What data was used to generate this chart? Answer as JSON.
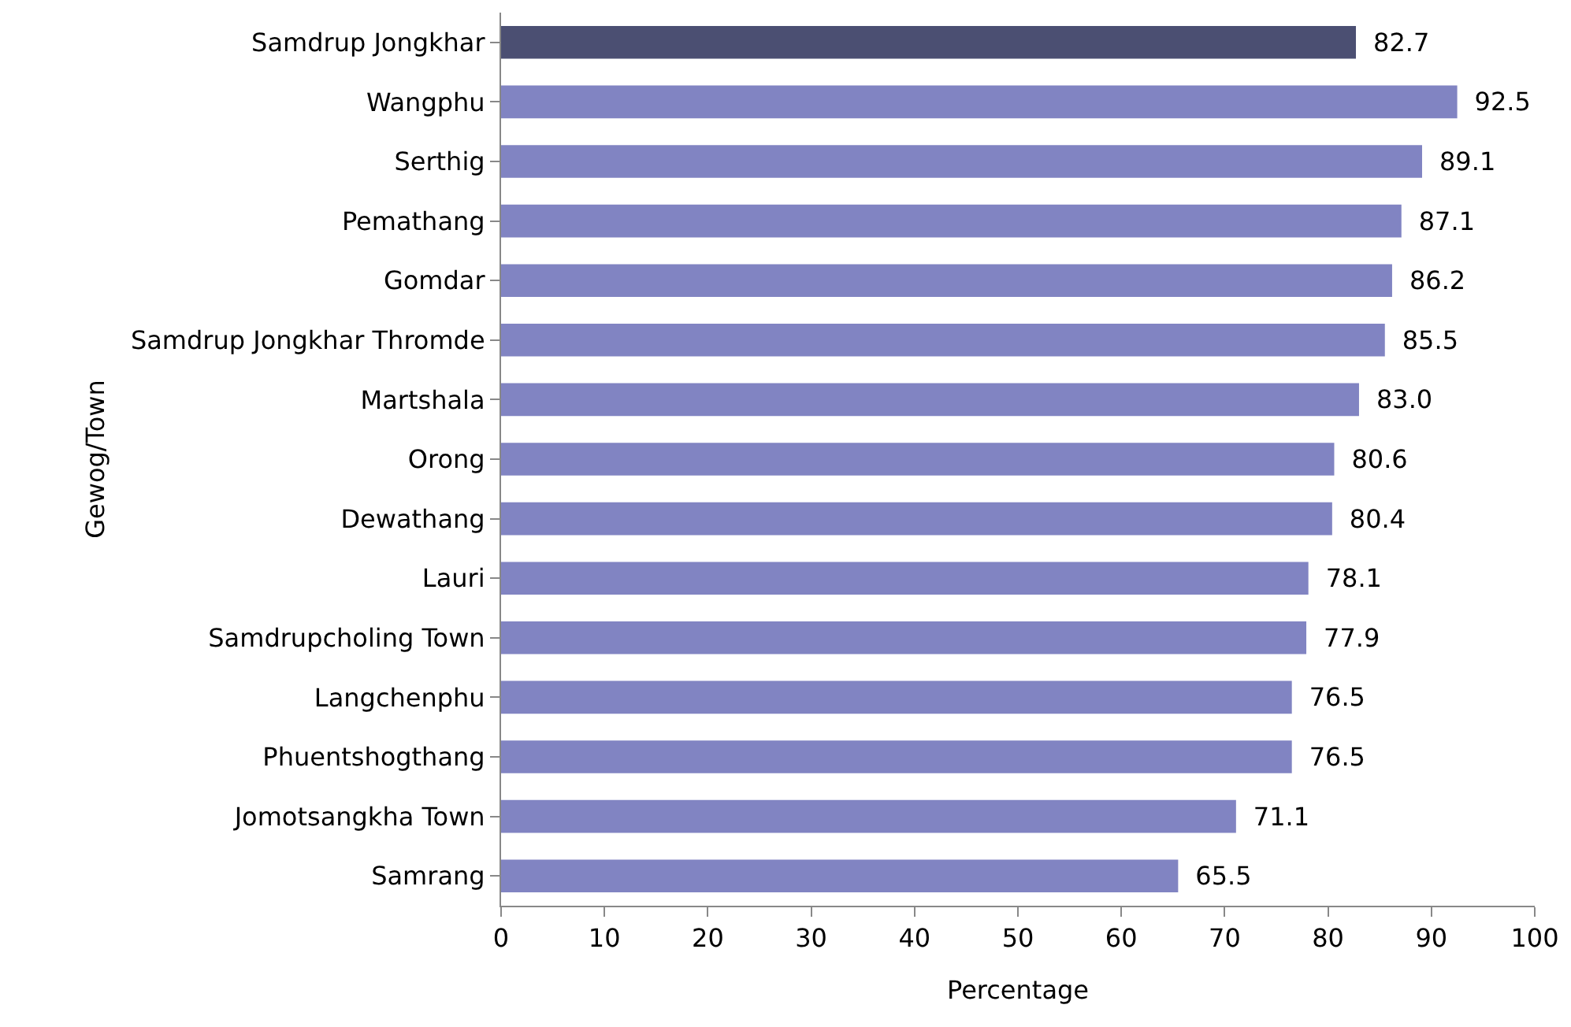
{
  "chart_data": {
    "type": "bar",
    "orientation": "horizontal",
    "xlabel": "Percentage",
    "ylabel": "Gewog/Town",
    "categories": [
      "Samdrup Jongkhar",
      "Wangphu",
      "Serthig",
      "Pemathang",
      "Gomdar",
      "Samdrup Jongkhar Thromde",
      "Martshala",
      "Orong",
      "Dewathang",
      "Lauri",
      "Samdrupcholing Town",
      "Langchenphu",
      "Phuentshogthang",
      "Jomotsangkha Town",
      "Samrang"
    ],
    "values": [
      82.7,
      92.5,
      89.1,
      87.1,
      86.2,
      85.5,
      83.0,
      80.6,
      80.4,
      78.1,
      77.9,
      76.5,
      76.5,
      71.1,
      65.5
    ],
    "value_labels": [
      "82.7",
      "92.5",
      "89.1",
      "87.1",
      "86.2",
      "85.5",
      "83.0",
      "80.6",
      "80.4",
      "78.1",
      "77.9",
      "76.5",
      "76.5",
      "71.1",
      "65.5"
    ],
    "colors": [
      "#4b4f72",
      "#8184c2",
      "#8184c2",
      "#8184c2",
      "#8184c2",
      "#8184c2",
      "#8184c2",
      "#8184c2",
      "#8184c2",
      "#8184c2",
      "#8184c2",
      "#8184c2",
      "#8184c2",
      "#8184c2",
      "#8184c2"
    ],
    "xlim": [
      0,
      100
    ],
    "xticks": [
      0,
      10,
      20,
      30,
      40,
      50,
      60,
      70,
      80,
      90,
      100
    ],
    "grid": false
  }
}
